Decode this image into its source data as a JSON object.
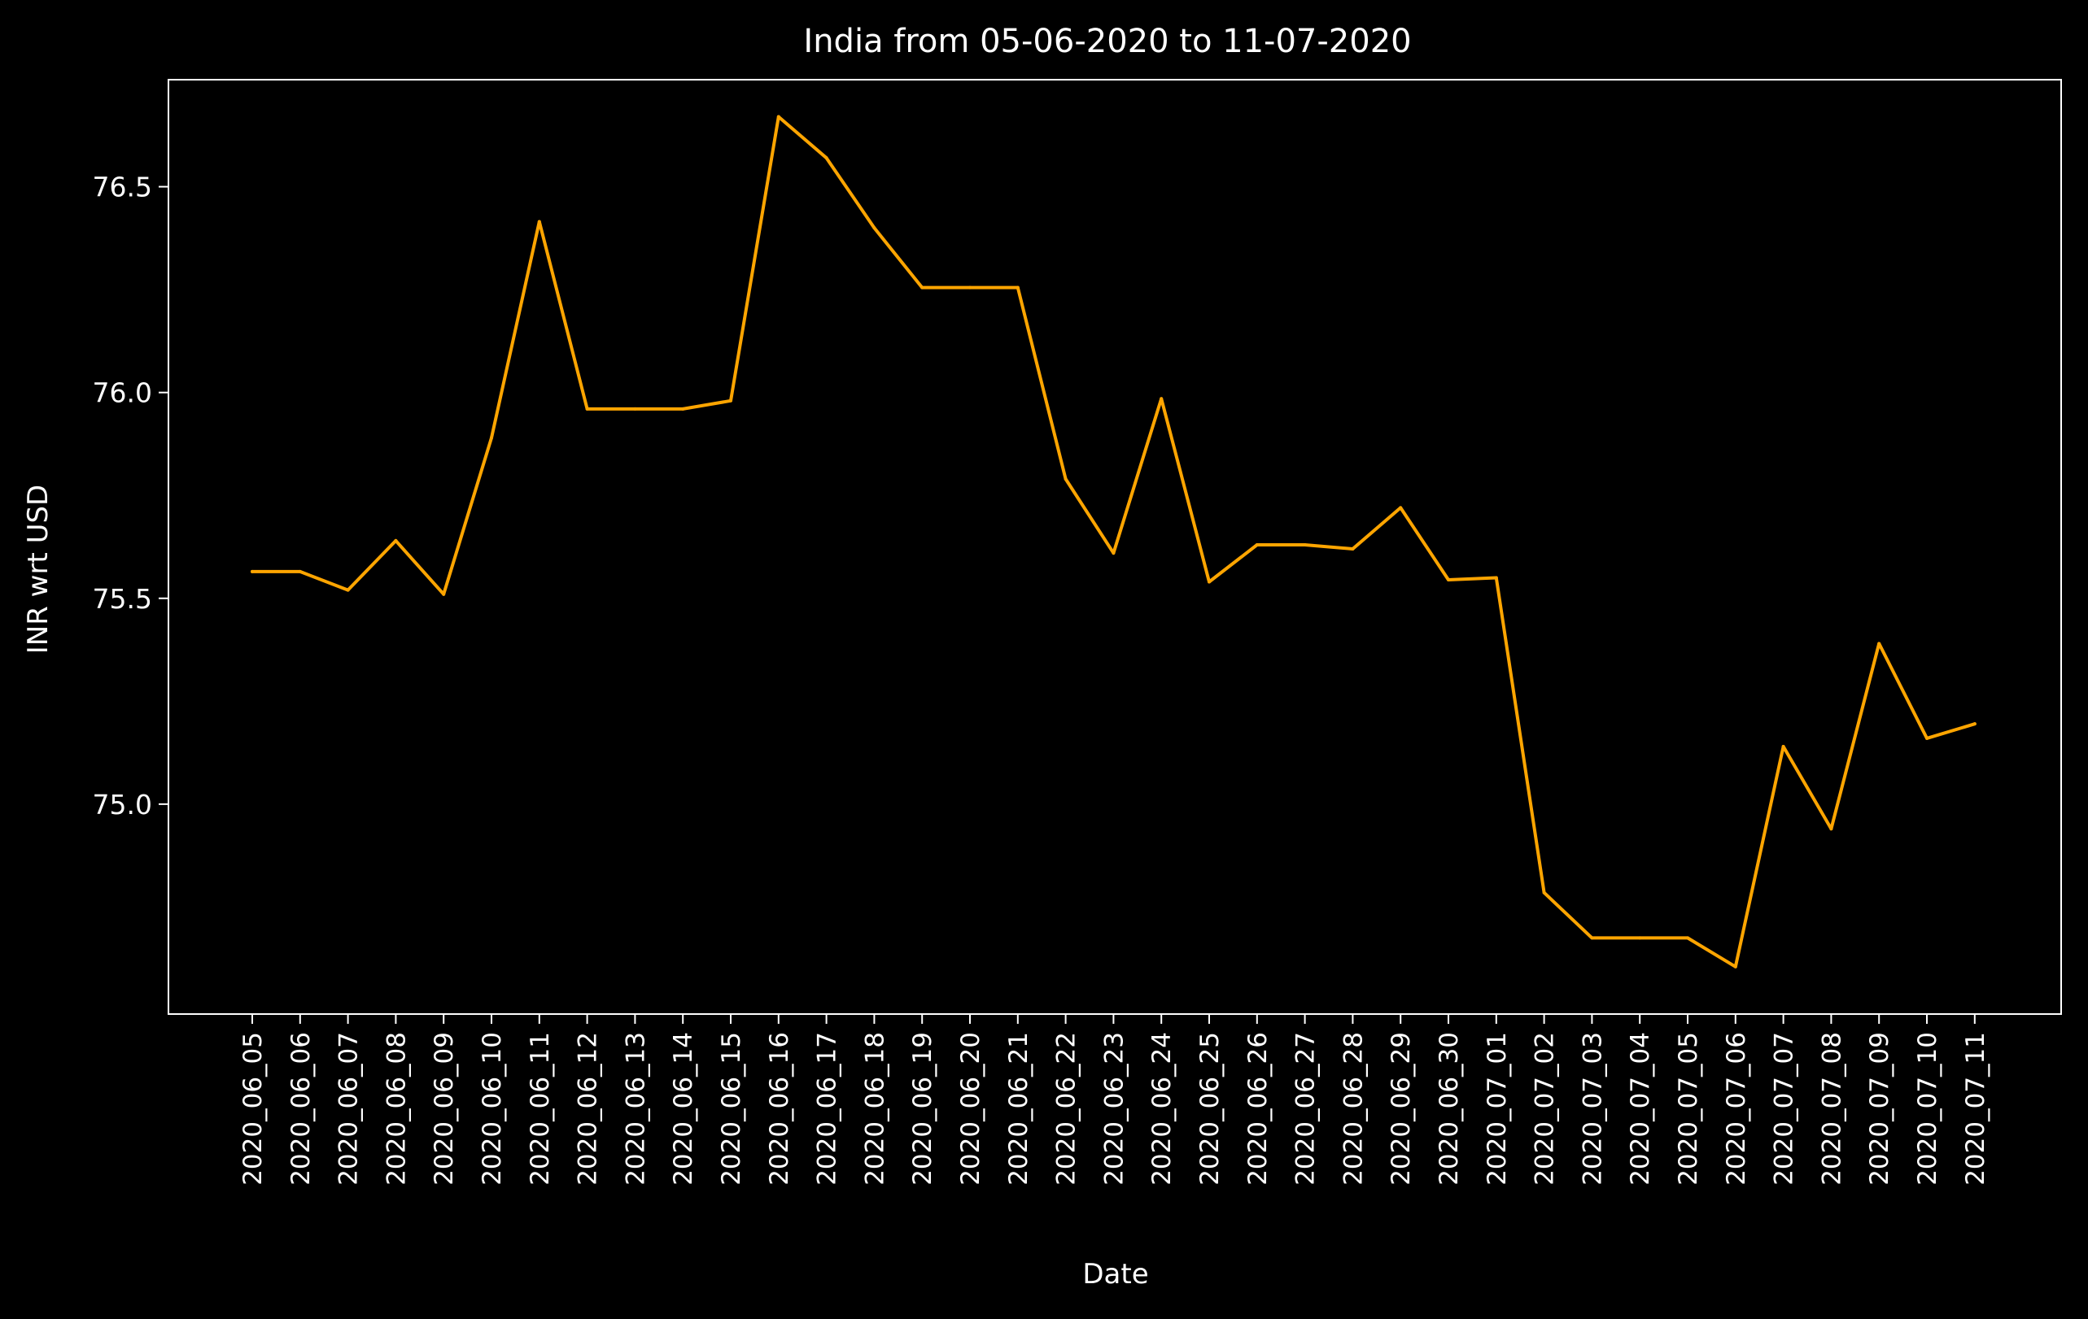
{
  "colors": {
    "background": "#000000",
    "axes": "#ffffff",
    "text": "#ffffff",
    "line": "#ffa500"
  },
  "chart_data": {
    "type": "line",
    "title": "India from 05-06-2020 to 11-07-2020",
    "xlabel": "Date",
    "ylabel": "INR wrt USD",
    "ylim": [
      74.49,
      76.76
    ],
    "yticks": [
      75.0,
      75.5,
      76.0,
      76.5
    ],
    "ytick_labels": [
      "75.0",
      "75.5",
      "76.0",
      "76.5"
    ],
    "grid": false,
    "legend": false,
    "categories": [
      "2020_06_05",
      "2020_06_06",
      "2020_06_07",
      "2020_06_08",
      "2020_06_09",
      "2020_06_10",
      "2020_06_11",
      "2020_06_12",
      "2020_06_13",
      "2020_06_14",
      "2020_06_15",
      "2020_06_16",
      "2020_06_17",
      "2020_06_18",
      "2020_06_19",
      "2020_06_20",
      "2020_06_21",
      "2020_06_22",
      "2020_06_23",
      "2020_06_24",
      "2020_06_25",
      "2020_06_26",
      "2020_06_27",
      "2020_06_28",
      "2020_06_29",
      "2020_06_30",
      "2020_07_01",
      "2020_07_02",
      "2020_07_03",
      "2020_07_04",
      "2020_07_05",
      "2020_07_06",
      "2020_07_07",
      "2020_07_08",
      "2020_07_09",
      "2020_07_10",
      "2020_07_11"
    ],
    "series": [
      {
        "values": [
          75.565,
          75.565,
          75.52,
          75.64,
          75.51,
          75.89,
          76.415,
          75.96,
          75.96,
          75.96,
          75.98,
          76.67,
          76.57,
          76.4,
          76.255,
          76.255,
          76.255,
          75.79,
          75.61,
          75.985,
          75.54,
          75.63,
          75.63,
          75.62,
          75.72,
          75.545,
          75.55,
          74.785,
          74.675,
          74.675,
          74.675,
          74.605,
          75.14,
          74.94,
          75.39,
          75.16,
          75.195
        ]
      }
    ]
  }
}
